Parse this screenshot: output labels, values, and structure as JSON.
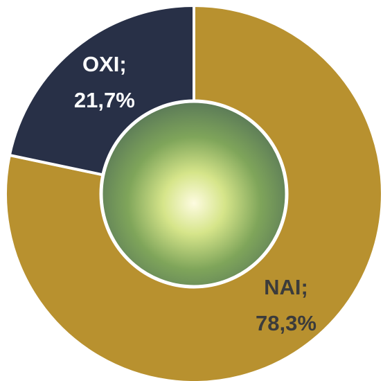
{
  "chart_data": {
    "type": "donut",
    "categories": [
      "NAI;",
      "OXI;"
    ],
    "values": [
      78.3,
      21.7
    ],
    "value_labels": [
      "78,3%",
      "21,7%"
    ],
    "colors": [
      "#b8912f",
      "#283047"
    ],
    "label_colors": [
      "#3b3b3b",
      "#ffffff"
    ]
  }
}
